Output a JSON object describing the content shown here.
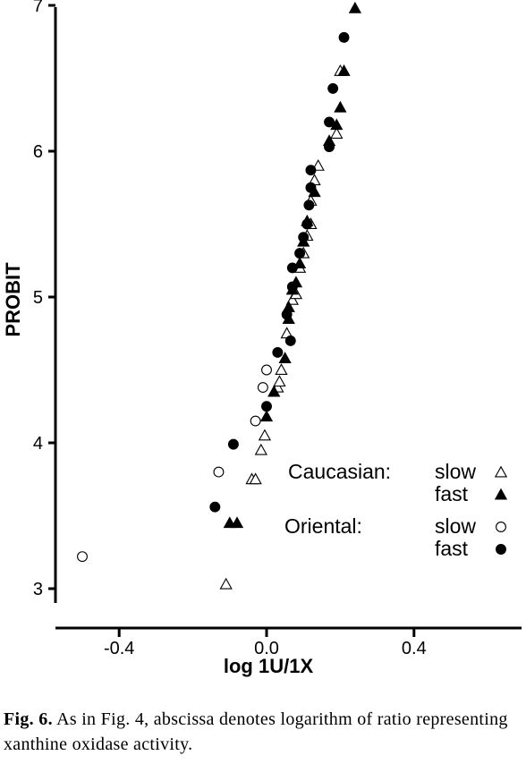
{
  "caption": {
    "label": "Fig. 6.",
    "text": "As in Fig. 4, abscissa denotes logarithm of ratio representing xanthine oxidase activity."
  },
  "chart_data": {
    "type": "scatter",
    "xlabel": "log 1U/1X",
    "ylabel": "PROBIT",
    "xlim": [
      -0.6,
      0.72
    ],
    "ylim": [
      3,
      7
    ],
    "xticks": [
      -0.4,
      0.0,
      0.4
    ],
    "xtick_labels": [
      "-0.4",
      "0.0",
      "0.4"
    ],
    "yticks": [
      3,
      4,
      5,
      6,
      7
    ],
    "ytick_labels": [
      "3",
      "4",
      "5",
      "6",
      "7"
    ],
    "grid": false,
    "legend_placement": "bottom-right",
    "legend": {
      "groups": [
        {
          "label": "Caucasian:",
          "entries": [
            {
              "label": "slow",
              "marker": "open-triangle"
            },
            {
              "label": "fast",
              "marker": "filled-triangle"
            }
          ]
        },
        {
          "label": "Oriental:",
          "entries": [
            {
              "label": "slow",
              "marker": "open-circle"
            },
            {
              "label": "fast",
              "marker": "filled-circle"
            }
          ]
        }
      ]
    },
    "series": [
      {
        "group": "Caucasian",
        "phenotype": "slow",
        "marker": "open-triangle",
        "x": [
          -0.11,
          -0.04,
          -0.03,
          -0.015,
          -0.005,
          0.03,
          0.035,
          0.04,
          0.055,
          0.07,
          0.08,
          0.09,
          0.1,
          0.11,
          0.12,
          0.12,
          0.13,
          0.14,
          0.19,
          0.2
        ],
        "y": [
          3.03,
          3.75,
          3.75,
          3.95,
          4.05,
          4.38,
          4.42,
          4.5,
          4.75,
          4.98,
          5.02,
          5.2,
          5.3,
          5.42,
          5.5,
          5.66,
          5.8,
          5.9,
          6.12,
          6.55
        ]
      },
      {
        "group": "Caucasian",
        "phenotype": "fast",
        "marker": "filled-triangle",
        "x": [
          -0.1,
          -0.08,
          0.0,
          0.02,
          0.05,
          0.06,
          0.06,
          0.07,
          0.08,
          0.09,
          0.1,
          0.11,
          0.13,
          0.17,
          0.19,
          0.2,
          0.21,
          0.24
        ],
        "y": [
          3.45,
          3.45,
          4.18,
          4.35,
          4.58,
          4.85,
          4.93,
          5.05,
          5.1,
          5.23,
          5.38,
          5.52,
          5.72,
          6.07,
          6.18,
          6.3,
          6.55,
          6.98
        ]
      },
      {
        "group": "Oriental",
        "phenotype": "slow",
        "marker": "open-circle",
        "x": [
          -0.5,
          -0.13,
          -0.03,
          -0.01,
          0.0
        ],
        "y": [
          3.22,
          3.8,
          4.15,
          4.38,
          4.5
        ]
      },
      {
        "group": "Oriental",
        "phenotype": "fast",
        "marker": "filled-circle",
        "x": [
          -0.14,
          -0.09,
          0.0,
          0.03,
          0.055,
          0.065,
          0.07,
          0.07,
          0.09,
          0.1,
          0.11,
          0.115,
          0.12,
          0.12,
          0.17,
          0.17,
          0.18,
          0.21
        ],
        "y": [
          3.56,
          3.99,
          4.25,
          4.62,
          4.88,
          4.7,
          5.07,
          5.2,
          5.3,
          5.41,
          5.5,
          5.63,
          5.75,
          5.87,
          6.03,
          6.2,
          6.43,
          6.78
        ]
      }
    ]
  }
}
